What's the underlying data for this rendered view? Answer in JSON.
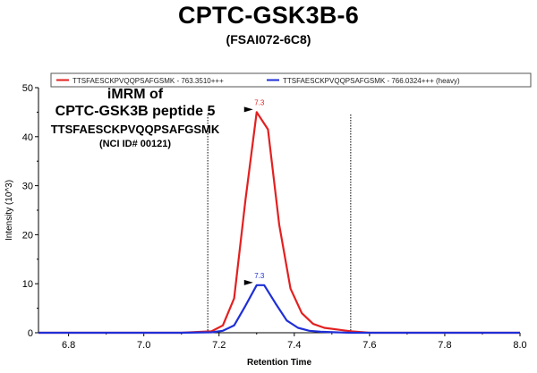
{
  "chart_data": {
    "type": "line",
    "title": "CPTC-GSK3B-6",
    "subtitle": "(FSAI072-6C8)",
    "xlabel": "Retention Time",
    "ylabel": "Intensity (10^3)",
    "xlim": [
      6.72,
      8.0
    ],
    "ylim": [
      0,
      50
    ],
    "xticks": [
      "6.8",
      "7.0",
      "7.2",
      "7.4",
      "7.6",
      "7.8",
      "8.0"
    ],
    "yticks": [
      "0",
      "10",
      "20",
      "30",
      "40",
      "50"
    ],
    "legend_position": "top",
    "series": [
      {
        "name": "TTSFAESCKPVQQPSAFGSMK - 763.3510+++",
        "color": "#e32020",
        "x": [
          6.72,
          7.1,
          7.18,
          7.21,
          7.24,
          7.27,
          7.3,
          7.33,
          7.36,
          7.39,
          7.42,
          7.45,
          7.48,
          7.52,
          7.55,
          7.6,
          8.0
        ],
        "y": [
          0.0,
          0.0,
          0.3,
          1.5,
          7.0,
          27.0,
          45.0,
          41.5,
          22.0,
          9.0,
          4.0,
          1.8,
          1.0,
          0.6,
          0.3,
          0.0,
          0.0
        ]
      },
      {
        "name": "TTSFAESCKPVQQPSAFGSMK - 766.0324+++ (heavy)",
        "color": "#1f2fd6",
        "x": [
          6.72,
          7.1,
          7.18,
          7.21,
          7.24,
          7.27,
          7.3,
          7.32,
          7.35,
          7.38,
          7.41,
          7.44,
          7.47,
          7.51,
          7.55,
          8.0
        ],
        "y": [
          0.0,
          0.0,
          0.1,
          0.4,
          1.5,
          5.5,
          9.7,
          9.7,
          6.0,
          2.5,
          1.0,
          0.4,
          0.2,
          0.1,
          0.0,
          0.0
        ]
      }
    ],
    "peak_labels": [
      {
        "x": 7.3,
        "y": 45.0,
        "text": "7.3",
        "color": "#e32020"
      },
      {
        "x": 7.3,
        "y": 9.7,
        "text": "7.3",
        "color": "#1f2fd6"
      }
    ],
    "boundaries": [
      7.17,
      7.55
    ],
    "annotation": {
      "line1": "iMRM of",
      "line2": "CPTC-GSK3B peptide 5",
      "line3": "TTSFAESCKPVQQPSAFGSMK",
      "line4": "(NCI ID# 00121)"
    }
  }
}
